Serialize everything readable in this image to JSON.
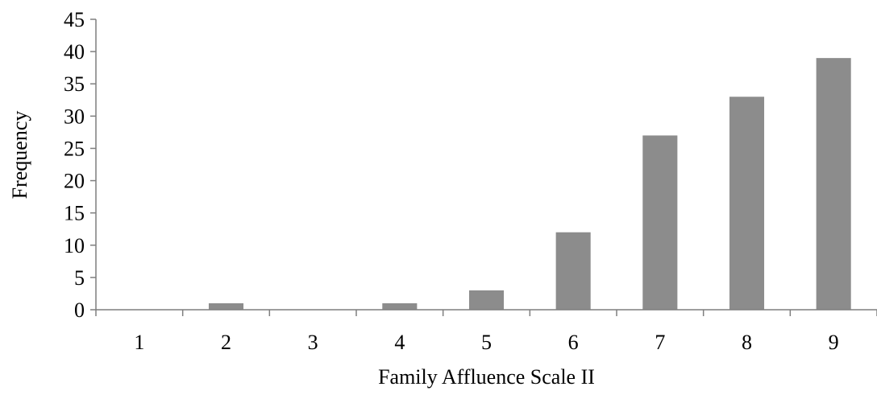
{
  "chart_data": {
    "type": "bar",
    "title": "",
    "xlabel": "Family Affluence Scale II",
    "ylabel": "Frequency",
    "categories": [
      "1",
      "2",
      "3",
      "4",
      "5",
      "6",
      "7",
      "8",
      "9"
    ],
    "values": [
      0,
      1,
      0,
      1,
      3,
      12,
      27,
      33,
      39
    ],
    "ylim": [
      0,
      45
    ],
    "yticks": [
      "0",
      "5",
      "10",
      "15",
      "20",
      "25",
      "30",
      "35",
      "40",
      "45"
    ],
    "grid": false,
    "legend": "none",
    "bar_color": "#8c8c8c",
    "axis_color": "#7f7f7f"
  }
}
